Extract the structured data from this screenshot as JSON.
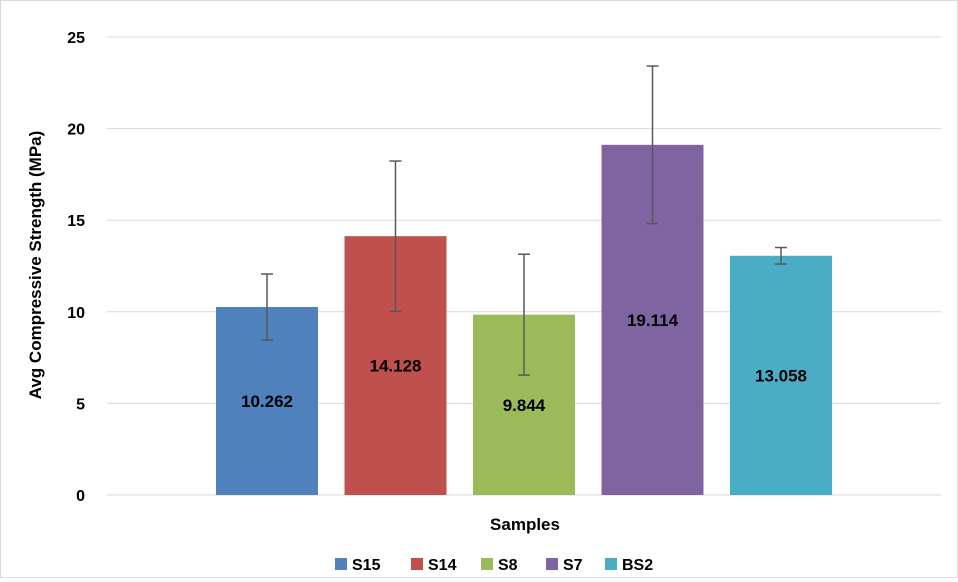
{
  "chart_data": {
    "type": "bar",
    "xlabel": "Samples",
    "ylabel": "Avg Compressive Strength (MPa)",
    "ylim": [
      0,
      25
    ],
    "yticks": [
      0,
      5,
      10,
      15,
      20,
      25
    ],
    "grid": true,
    "legend_position": "bottom",
    "series": [
      {
        "name": "S15",
        "value": 10.262,
        "value_label": "10.262",
        "error": 1.8,
        "color": "#4f81bd"
      },
      {
        "name": "S14",
        "value": 14.128,
        "value_label": "14.128",
        "error": 4.1,
        "color": "#c0504d"
      },
      {
        "name": "S8",
        "value": 9.844,
        "value_label": "9.844",
        "error": 3.3,
        "color": "#9bbb59"
      },
      {
        "name": "S7",
        "value": 19.114,
        "value_label": "19.114",
        "error": 4.3,
        "color": "#8064a2"
      },
      {
        "name": "BS2",
        "value": 13.058,
        "value_label": "13.058",
        "error": 0.45,
        "color": "#4bacc6"
      }
    ]
  }
}
